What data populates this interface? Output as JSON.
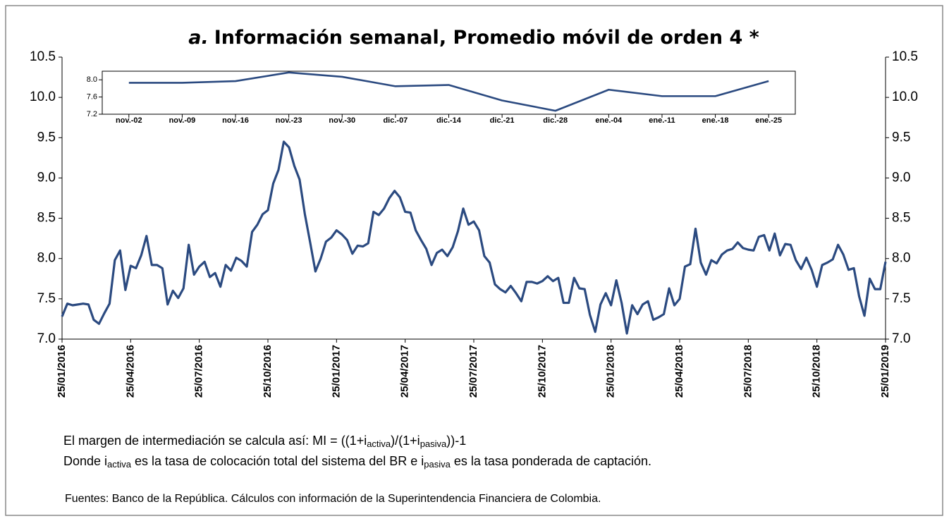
{
  "chart_data": {
    "type": "line",
    "title_label": "a.",
    "title": "Información semanal, Promedio móvil de orden 4 *",
    "categories": [
      "25/01/2016",
      null,
      null,
      null,
      null,
      null,
      null,
      null,
      null,
      null,
      null,
      null,
      null,
      "25/04/2016",
      null,
      null,
      null,
      null,
      null,
      null,
      null,
      null,
      null,
      null,
      null,
      null,
      "25/07/2016",
      null,
      null,
      null,
      null,
      null,
      null,
      null,
      null,
      null,
      null,
      null,
      null,
      "25/10/2016",
      null,
      null,
      null,
      null,
      null,
      null,
      null,
      null,
      null,
      null,
      null,
      null,
      "25/01/2017",
      null,
      null,
      null,
      null,
      null,
      null,
      null,
      null,
      null,
      null,
      null,
      null,
      "25/04/2017",
      null,
      null,
      null,
      null,
      null,
      null,
      null,
      null,
      null,
      null,
      null,
      null,
      "25/07/2017",
      null,
      null,
      null,
      null,
      null,
      null,
      null,
      null,
      null,
      null,
      null,
      null,
      "25/10/2017",
      null,
      null,
      null,
      null,
      null,
      null,
      null,
      null,
      null,
      null,
      null,
      null,
      "25/01/2018",
      null,
      null,
      null,
      null,
      null,
      null,
      null,
      null,
      null,
      null,
      null,
      null,
      "25/04/2018",
      null,
      null,
      null,
      null,
      null,
      null,
      null,
      null,
      null,
      null,
      null,
      null,
      "25/07/2018",
      null,
      null,
      null,
      null,
      null,
      null,
      null,
      null,
      null,
      null,
      null,
      null,
      "25/10/2018",
      null,
      null,
      null,
      null,
      null,
      null,
      null,
      null,
      null,
      null,
      null,
      null,
      "25/01/2019"
    ],
    "series": [
      {
        "color": "#2b4a80",
        "values": [
          7.28,
          7.44,
          7.42,
          7.43,
          7.44,
          7.43,
          7.24,
          7.19,
          7.32,
          7.44,
          7.98,
          8.1,
          7.61,
          7.91,
          7.88,
          8.04,
          8.28,
          7.92,
          7.92,
          7.88,
          7.43,
          7.6,
          7.51,
          7.63,
          8.17,
          7.8,
          7.9,
          7.96,
          7.77,
          7.82,
          7.65,
          7.92,
          7.85,
          8.01,
          7.97,
          7.9,
          8.33,
          8.42,
          8.55,
          8.6,
          8.93,
          9.1,
          9.45,
          9.38,
          9.15,
          8.98,
          8.55,
          8.2,
          7.84,
          8.0,
          8.21,
          8.26,
          8.35,
          8.3,
          8.23,
          8.06,
          8.16,
          8.15,
          8.19,
          8.58,
          8.54,
          8.62,
          8.75,
          8.84,
          8.76,
          8.58,
          8.57,
          8.35,
          8.23,
          8.12,
          7.92,
          8.07,
          8.11,
          8.03,
          8.14,
          8.34,
          8.62,
          8.42,
          8.46,
          8.35,
          8.03,
          7.95,
          7.68,
          7.62,
          7.58,
          7.66,
          7.57,
          7.47,
          7.71,
          7.71,
          7.69,
          7.72,
          7.78,
          7.72,
          7.76,
          7.45,
          7.45,
          7.76,
          7.63,
          7.62,
          7.3,
          7.09,
          7.43,
          7.57,
          7.42,
          7.73,
          7.45,
          7.07,
          7.42,
          7.31,
          7.43,
          7.47,
          7.24,
          7.27,
          7.31,
          7.63,
          7.42,
          7.5,
          7.9,
          7.93,
          8.37,
          7.95,
          7.8,
          7.98,
          7.94,
          8.05,
          8.1,
          8.12,
          8.2,
          8.13,
          8.11,
          8.1,
          8.27,
          8.29,
          8.1,
          8.31,
          8.04,
          8.18,
          8.17,
          7.98,
          7.87,
          8.01,
          7.86,
          7.65,
          7.92,
          7.95,
          7.99,
          8.17,
          8.05,
          7.86,
          7.88,
          7.53,
          7.29,
          7.75,
          7.62,
          7.62,
          7.96
        ]
      }
    ],
    "ylim": [
      7.0,
      10.5
    ],
    "yticks": [
      {
        "value": 7.0,
        "label": "7.0"
      },
      7.5,
      {
        "value": 8.0,
        "label": "8.0"
      },
      8.5,
      {
        "value": 9.0,
        "label": "9.0"
      },
      9.5,
      {
        "value": 10.0,
        "label": "10.0"
      },
      10.5
    ],
    "inset": {
      "type": "line",
      "categories": [
        "nov.-02",
        "nov.-09",
        "nov.-16",
        "nov.-23",
        "nov.-30",
        "dic.-07",
        "dic.-14",
        "dic.-21",
        "dic.-28",
        "ene.-04",
        "ene.-11",
        "ene.-18",
        "ene.-25"
      ],
      "series": [
        {
          "color": "#2b4a80",
          "values": [
            7.93,
            7.93,
            7.97,
            8.17,
            8.07,
            7.85,
            7.88,
            7.52,
            7.28,
            7.77,
            7.62,
            7.62,
            7.97
          ]
        }
      ],
      "ylim": [
        7.2,
        8.2
      ],
      "yticks": [
        {
          "value": 7.2,
          "label": "7.2"
        },
        {
          "value": 7.6,
          "label": "7.6"
        },
        {
          "value": 8.0,
          "label": "8.0"
        }
      ]
    },
    "notes": [
      [
        "El margen de intermediación se calcula así: MI = ((1+i",
        "activa",
        ")/(1+i",
        "pasiva",
        "))-1"
      ],
      [
        "Donde i",
        "activa",
        " es la tasa de colocación total del sistema del BR e i",
        "pasiva",
        " es la tasa ponderada de captación."
      ]
    ],
    "source": "Fuentes: Banco de la República. Cálculos con información de la Superintendencia Financiera de Colombia."
  }
}
